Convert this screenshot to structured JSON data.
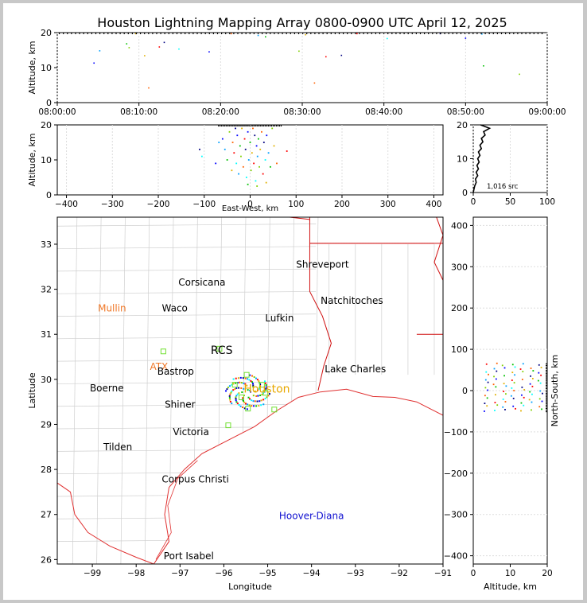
{
  "chart_data": {
    "type": "scatter",
    "title": "Houston Lightning Mapping Array 0800-0900 UTC April 12, 2025",
    "panels": {
      "time_altitude": {
        "ylabel": "Altitude, km",
        "ylim": [
          0,
          20
        ],
        "yticks": [
          0,
          10,
          20
        ],
        "xticks": [
          "08:00:00",
          "08:10:00",
          "08:20:00",
          "08:30:00",
          "08:40:00",
          "08:50:00",
          "09:00:00"
        ],
        "points": [
          {
            "t": 4.5,
            "alt": 11.3
          },
          {
            "t": 5.2,
            "alt": 14.8
          },
          {
            "t": 8.5,
            "alt": 16.8
          },
          {
            "t": 8.8,
            "alt": 15.7
          },
          {
            "t": 10.7,
            "alt": 13.4
          },
          {
            "t": 11.2,
            "alt": 4.2
          },
          {
            "t": 12.5,
            "alt": 15.9
          },
          {
            "t": 13.1,
            "alt": 17.2
          },
          {
            "t": 14.9,
            "alt": 15.3
          },
          {
            "t": 18.6,
            "alt": 14.5
          },
          {
            "t": 24.6,
            "alt": 19.2
          },
          {
            "t": 25.5,
            "alt": 18.8
          },
          {
            "t": 29.6,
            "alt": 14.7
          },
          {
            "t": 30.4,
            "alt": 19.4
          },
          {
            "t": 31.5,
            "alt": 5.6
          },
          {
            "t": 32.9,
            "alt": 13.1
          },
          {
            "t": 34.8,
            "alt": 13.5
          },
          {
            "t": 40.4,
            "alt": 18.3
          },
          {
            "t": 50.0,
            "alt": 18.4
          },
          {
            "t": 52.0,
            "alt": 19.6
          },
          {
            "t": 52.2,
            "alt": 10.5
          },
          {
            "t": 56.6,
            "alt": 8.1
          },
          {
            "t": 9.6,
            "alt": 19.7
          },
          {
            "t": 21.3,
            "alt": 19.7
          },
          {
            "t": 36.7,
            "alt": 19.7
          },
          {
            "t": 46.9,
            "alt": 19.7
          }
        ]
      },
      "ew_altitude": {
        "xlabel": "East-West, km",
        "ylabel": "Altitude, km",
        "xlim": [
          -420,
          420
        ],
        "ylim": [
          0,
          20
        ],
        "xticks": [
          -400,
          -300,
          -200,
          -100,
          0,
          100,
          200,
          300,
          400
        ],
        "yticks": [
          0,
          10,
          20
        ],
        "points": [
          {
            "x": -60,
            "alt": 16
          },
          {
            "x": -55,
            "alt": 13
          },
          {
            "x": -50,
            "alt": 10
          },
          {
            "x": -45,
            "alt": 18
          },
          {
            "x": -40,
            "alt": 7
          },
          {
            "x": -38,
            "alt": 15
          },
          {
            "x": -35,
            "alt": 12
          },
          {
            "x": -32,
            "alt": 19
          },
          {
            "x": -30,
            "alt": 9
          },
          {
            "x": -28,
            "alt": 17
          },
          {
            "x": -25,
            "alt": 6
          },
          {
            "x": -22,
            "alt": 14
          },
          {
            "x": -20,
            "alt": 11
          },
          {
            "x": -18,
            "alt": 19
          },
          {
            "x": -15,
            "alt": 8
          },
          {
            "x": -12,
            "alt": 16
          },
          {
            "x": -10,
            "alt": 13
          },
          {
            "x": -8,
            "alt": 5
          },
          {
            "x": -5,
            "alt": 18
          },
          {
            "x": -3,
            "alt": 10
          },
          {
            "x": 0,
            "alt": 15
          },
          {
            "x": 2,
            "alt": 7
          },
          {
            "x": 4,
            "alt": 12
          },
          {
            "x": 6,
            "alt": 19
          },
          {
            "x": 8,
            "alt": 9
          },
          {
            "x": 10,
            "alt": 17
          },
          {
            "x": 12,
            "alt": 4
          },
          {
            "x": 14,
            "alt": 14
          },
          {
            "x": 16,
            "alt": 11
          },
          {
            "x": 18,
            "alt": 16
          },
          {
            "x": 20,
            "alt": 8
          },
          {
            "x": 22,
            "alt": 13
          },
          {
            "x": 25,
            "alt": 18
          },
          {
            "x": 28,
            "alt": 6
          },
          {
            "x": 30,
            "alt": 15
          },
          {
            "x": 33,
            "alt": 10
          },
          {
            "x": 36,
            "alt": 17
          },
          {
            "x": 40,
            "alt": 12
          },
          {
            "x": 44,
            "alt": 8
          },
          {
            "x": 48,
            "alt": 19
          },
          {
            "x": 52,
            "alt": 14
          },
          {
            "x": 58,
            "alt": 9
          },
          {
            "x": 80,
            "alt": 12.5
          },
          {
            "x": -110,
            "alt": 13
          },
          {
            "x": -105,
            "alt": 11
          },
          {
            "x": -75,
            "alt": 9
          },
          {
            "x": -68,
            "alt": 15
          },
          {
            "x": -5,
            "alt": 3
          },
          {
            "x": 15,
            "alt": 2.5
          },
          {
            "x": 35,
            "alt": 3.5
          }
        ]
      },
      "altitude_histogram": {
        "xticks": [
          0,
          50,
          100
        ],
        "xlim": [
          0,
          100
        ],
        "ylim": [
          0,
          20
        ],
        "yticks": [
          0,
          10,
          20
        ],
        "label": "1,016 src",
        "profile": [
          {
            "alt": 0.0,
            "count": 0
          },
          {
            "alt": 1.0,
            "count": 1
          },
          {
            "alt": 2.0,
            "count": 2
          },
          {
            "alt": 3.0,
            "count": 4
          },
          {
            "alt": 4.0,
            "count": 3
          },
          {
            "alt": 5.0,
            "count": 6
          },
          {
            "alt": 6.0,
            "count": 4
          },
          {
            "alt": 7.0,
            "count": 7
          },
          {
            "alt": 8.0,
            "count": 5
          },
          {
            "alt": 9.0,
            "count": 8
          },
          {
            "alt": 10.0,
            "count": 6
          },
          {
            "alt": 11.0,
            "count": 9
          },
          {
            "alt": 12.0,
            "count": 7
          },
          {
            "alt": 13.0,
            "count": 11
          },
          {
            "alt": 14.0,
            "count": 9
          },
          {
            "alt": 15.0,
            "count": 13
          },
          {
            "alt": 16.0,
            "count": 11
          },
          {
            "alt": 17.0,
            "count": 16
          },
          {
            "alt": 18.0,
            "count": 14
          },
          {
            "alt": 19.0,
            "count": 22
          },
          {
            "alt": 19.6,
            "count": 15
          },
          {
            "alt": 20.0,
            "count": 10
          }
        ]
      },
      "map": {
        "xlabel": "Longitude",
        "ylabel": "Latitude",
        "xlim": [
          -99.8,
          -91.0
        ],
        "ylim": [
          25.9,
          33.6
        ],
        "xticks": [
          -99,
          -98,
          -97,
          -96,
          -95,
          -94,
          -93,
          -92,
          -91
        ],
        "yticks": [
          26,
          27,
          28,
          29,
          30,
          31,
          32,
          33
        ],
        "labels": [
          {
            "text": "Shreveport",
            "lon": -93.75,
            "lat": 32.55,
            "color": "#000000"
          },
          {
            "text": "Corsicana",
            "lon": -96.5,
            "lat": 32.15,
            "color": "#000000"
          },
          {
            "text": "Natchitoches",
            "lon": -93.08,
            "lat": 31.75,
            "color": "#000000"
          },
          {
            "text": "Mullin",
            "lon": -98.55,
            "lat": 31.58,
            "color": "#f07828"
          },
          {
            "text": "Waco",
            "lon": -97.12,
            "lat": 31.58,
            "color": "#000000"
          },
          {
            "text": "Lufkin",
            "lon": -94.73,
            "lat": 31.36,
            "color": "#000000"
          },
          {
            "text": "RCS",
            "lon": -96.05,
            "lat": 30.63,
            "color": "#000000"
          },
          {
            "text": "ATX",
            "lon": -97.48,
            "lat": 30.28,
            "color": "#f07828"
          },
          {
            "text": "Bastrop",
            "lon": -97.1,
            "lat": 30.17,
            "color": "#000000"
          },
          {
            "text": "Lake Charles",
            "lon": -93.0,
            "lat": 30.23,
            "color": "#000000"
          },
          {
            "text": "Houston",
            "lon": -95.02,
            "lat": 29.78,
            "color": "#e8a800"
          },
          {
            "text": "Boerne",
            "lon": -98.67,
            "lat": 29.8,
            "color": "#000000"
          },
          {
            "text": "Shiner",
            "lon": -97.0,
            "lat": 29.44,
            "color": "#000000"
          },
          {
            "text": "Victoria",
            "lon": -96.75,
            "lat": 28.83,
            "color": "#000000"
          },
          {
            "text": "Tilden",
            "lon": -98.42,
            "lat": 28.5,
            "color": "#000000"
          },
          {
            "text": "Corpus Christi",
            "lon": -96.65,
            "lat": 27.78,
            "color": "#000000"
          },
          {
            "text": "Hoover-Diana",
            "lon": -94.0,
            "lat": 26.97,
            "color": "#1010d0"
          },
          {
            "text": "Port Isabel",
            "lon": -96.8,
            "lat": 26.08,
            "color": "#000000"
          }
        ],
        "stations": [
          {
            "lon": -97.38,
            "lat": 30.62
          },
          {
            "lon": -96.1,
            "lat": 30.68
          },
          {
            "lon": -95.75,
            "lat": 29.88
          },
          {
            "lon": -95.6,
            "lat": 29.6
          },
          {
            "lon": -95.45,
            "lat": 29.35
          },
          {
            "lon": -95.13,
            "lat": 29.88
          },
          {
            "lon": -95.05,
            "lat": 29.7
          },
          {
            "lon": -94.85,
            "lat": 29.33
          },
          {
            "lon": -95.9,
            "lat": 28.98
          },
          {
            "lon": -95.48,
            "lat": 30.1
          }
        ]
      },
      "ns_altitude": {
        "xlabel": "Altitude, km",
        "ylabel": "North-South, km",
        "xlim": [
          0,
          20
        ],
        "ylim": [
          -420,
          420
        ],
        "xticks": [
          0,
          10,
          20
        ],
        "yticks": [
          -400,
          -300,
          -200,
          -100,
          0,
          100,
          200,
          300,
          400
        ]
      }
    }
  }
}
